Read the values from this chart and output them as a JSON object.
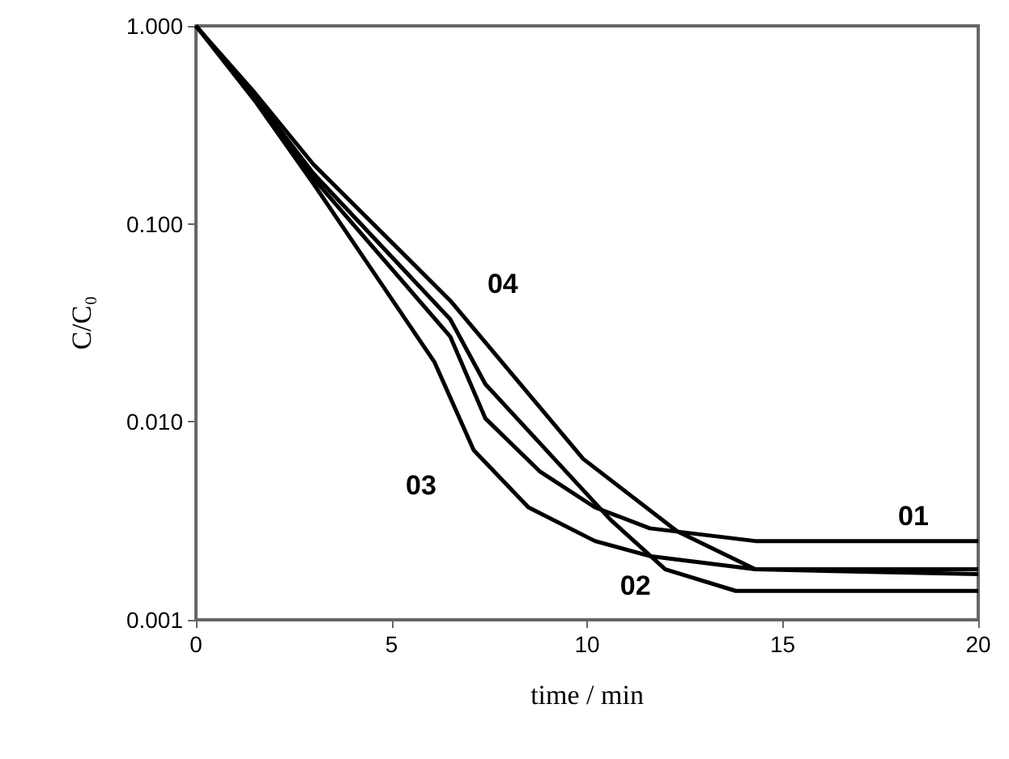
{
  "chart_data": {
    "type": "line",
    "xlabel": "time / min",
    "ylabel": "C/C₀",
    "log": "y",
    "grid": false,
    "legend": false,
    "line_style": "solid",
    "xlim": [
      0,
      20
    ],
    "xticks": [
      0,
      5,
      10,
      15,
      20
    ],
    "ylim": [
      0.001,
      1
    ],
    "yticks": [
      {
        "value": 0.001,
        "label": "0.001"
      },
      {
        "value": 0.01,
        "label": "0.010"
      },
      {
        "value": 0.1,
        "label": "0.100"
      },
      {
        "value": 1,
        "label": "1.000"
      }
    ],
    "series": [
      {
        "name": "01",
        "color": "#000000",
        "x": [
          0,
          1.5,
          3,
          6.5,
          7.4,
          8.8,
          10.2,
          11.6,
          14.3,
          20
        ],
        "values": [
          1,
          0.43,
          0.17,
          0.027,
          0.0104,
          0.0056,
          0.0037,
          0.0029,
          0.0025,
          0.0025
        ]
      },
      {
        "name": "02",
        "color": "#000000",
        "x": [
          0,
          1.5,
          3,
          6.5,
          7.4,
          10.6,
          12,
          13.8,
          20
        ],
        "values": [
          1,
          0.44,
          0.18,
          0.033,
          0.0155,
          0.0032,
          0.0018,
          0.0014,
          0.0014
        ]
      },
      {
        "name": "03",
        "color": "#000000",
        "x": [
          0,
          1.5,
          3,
          6.1,
          7.1,
          8.5,
          10.2,
          11.6,
          14.3,
          20
        ],
        "values": [
          1,
          0.42,
          0.16,
          0.02,
          0.0072,
          0.0037,
          0.0025,
          0.0021,
          0.0018,
          0.0017
        ]
      },
      {
        "name": "04",
        "color": "#000000",
        "x": [
          0,
          1.5,
          3,
          6.5,
          9.9,
          12.3,
          14.3,
          20
        ],
        "values": [
          1,
          0.46,
          0.2,
          0.041,
          0.0065,
          0.0028,
          0.0018,
          0.0018
        ]
      }
    ]
  }
}
